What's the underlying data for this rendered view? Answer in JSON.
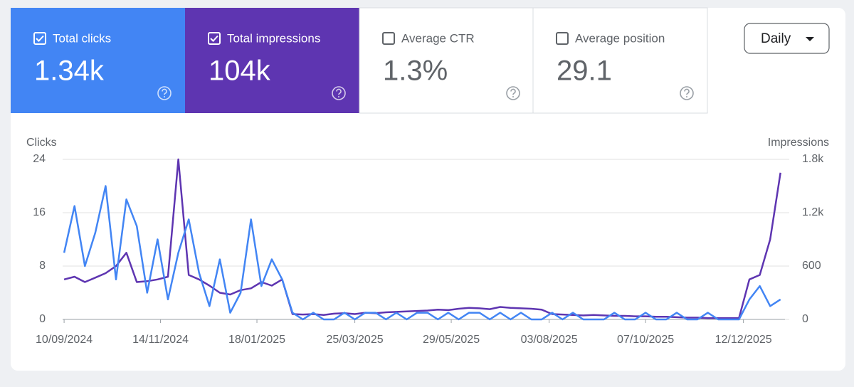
{
  "metrics": [
    {
      "label": "Total clicks",
      "value": "1.34k",
      "checked": true,
      "color": "#4285f4"
    },
    {
      "label": "Total impressions",
      "value": "104k",
      "checked": true,
      "color": "#5e35b1"
    },
    {
      "label": "Average CTR",
      "value": "1.3%",
      "checked": false,
      "color": "#ffffff"
    },
    {
      "label": "Average position",
      "value": "29.1",
      "checked": false,
      "color": "#ffffff"
    }
  ],
  "dropdown": "Daily",
  "chart_data": {
    "type": "line",
    "x": [
      "10/09/2024",
      "17/09/2024",
      "24/09/2024",
      "01/10/2024",
      "08/10/2024",
      "15/10/2024",
      "22/10/2024",
      "29/10/2024",
      "05/11/2024",
      "12/11/2024",
      "19/11/2024",
      "26/11/2024",
      "03/12/2024",
      "10/12/2024",
      "17/12/2024",
      "24/12/2024",
      "31/12/2024",
      "07/01/2025",
      "14/01/2025",
      "21/01/2025",
      "28/01/2025",
      "04/02/2025",
      "11/02/2025",
      "18/02/2025",
      "25/02/2025",
      "04/03/2025",
      "11/03/2025",
      "18/03/2025",
      "25/03/2025",
      "01/04/2025",
      "08/04/2025",
      "15/04/2025",
      "22/04/2025",
      "29/04/2025",
      "06/05/2025",
      "13/05/2025",
      "20/05/2025",
      "27/05/2025",
      "03/06/2025",
      "10/06/2025",
      "17/06/2025",
      "24/06/2025",
      "01/07/2025",
      "08/07/2025",
      "15/07/2025",
      "22/07/2025",
      "29/07/2025",
      "05/08/2025",
      "12/08/2025",
      "19/08/2025",
      "26/08/2025",
      "02/09/2025",
      "09/09/2025",
      "16/09/2025",
      "23/09/2025",
      "30/09/2025",
      "07/10/2025",
      "14/10/2025",
      "21/10/2025",
      "28/10/2025",
      "04/11/2025",
      "11/11/2025",
      "18/11/2025",
      "25/11/2025",
      "02/12/2025",
      "09/12/2025",
      "16/12/2025",
      "23/12/2025",
      "30/12/2025",
      "06/01/2026"
    ],
    "xlim": [
      "09/09/2024",
      "09/01/2026"
    ],
    "xticks": [
      "10/09/2024",
      "14/11/2024",
      "18/01/2025",
      "25/03/2025",
      "29/05/2025",
      "03/08/2025",
      "07/10/2025",
      "12/12/2025"
    ],
    "ylim": [
      0,
      24
    ],
    "yticks": [
      0,
      8,
      16,
      24
    ],
    "y2lim": [
      0,
      1800
    ],
    "y2ticks": [
      0,
      600,
      {
        "value": 1200,
        "label": "1.2k"
      },
      {
        "value": 1800,
        "label": "1.8k"
      }
    ],
    "grid": true,
    "series": [
      {
        "name": "Clicks",
        "color": "#4285f4",
        "values": [
          10,
          17,
          8,
          13,
          20,
          6,
          18,
          14,
          4,
          12,
          3,
          10,
          15,
          7,
          2,
          9,
          1,
          4,
          15,
          5,
          9,
          6,
          1,
          0,
          1,
          0,
          0,
          1,
          0,
          1,
          1,
          0,
          1,
          0,
          1,
          1,
          0,
          1,
          0,
          1,
          1,
          0,
          1,
          0,
          1,
          0,
          0,
          1,
          0,
          1,
          0,
          0,
          0,
          1,
          0,
          0,
          1,
          0,
          0,
          1,
          0,
          0,
          1,
          0,
          0,
          0,
          3,
          5,
          2,
          3
        ]
      },
      {
        "name": "Impressions",
        "color": "#5e35b1",
        "axis": "y2",
        "values": [
          450,
          480,
          420,
          470,
          520,
          600,
          750,
          420,
          430,
          450,
          480,
          1800,
          500,
          450,
          380,
          300,
          280,
          330,
          350,
          420,
          380,
          450,
          60,
          55,
          60,
          50,
          65,
          70,
          60,
          75,
          70,
          80,
          85,
          90,
          95,
          100,
          110,
          105,
          120,
          130,
          125,
          115,
          140,
          130,
          125,
          120,
          110,
          60,
          55,
          50,
          45,
          50,
          45,
          40,
          40,
          35,
          35,
          30,
          30,
          25,
          20,
          20,
          15,
          15,
          15,
          15,
          450,
          500,
          900,
          1650
        ]
      }
    ]
  }
}
